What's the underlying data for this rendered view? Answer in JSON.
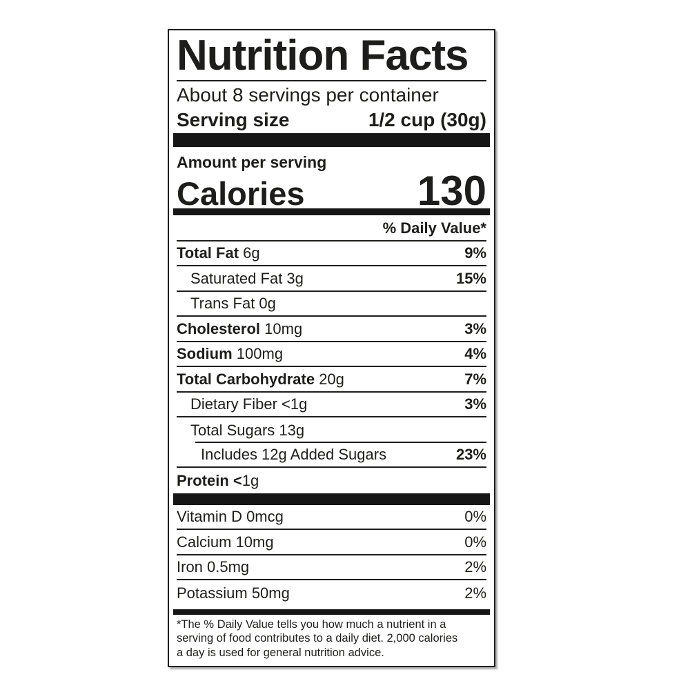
{
  "nutrition_label": {
    "title": "Nutrition Facts",
    "servings_per_container": "About 8 servings per container",
    "serving_size": {
      "label": "Serving size",
      "value": "1/2 cup (30g)"
    },
    "amount_per_serving": "Amount per serving",
    "calories": {
      "label": "Calories",
      "value": "130"
    },
    "daily_value_header": "% Daily Value*",
    "nutrients": [
      {
        "bold": "Total Fat ",
        "text": "6g",
        "dv": "9%"
      },
      {
        "bold": "",
        "text": "Saturated Fat 3g",
        "dv": "15%"
      },
      {
        "bold": "",
        "text": "Trans Fat 0g",
        "dv": ""
      },
      {
        "bold": "Cholesterol ",
        "text": "10mg",
        "dv": "3%"
      },
      {
        "bold": "Sodium ",
        "text": "100mg",
        "dv": "4%"
      },
      {
        "bold": "Total Carbohydrate ",
        "text": "20g",
        "dv": "7%"
      },
      {
        "bold": "",
        "text": "Dietary Fiber <1g",
        "dv": "3%"
      },
      {
        "bold": "",
        "text": "Total Sugars 13g",
        "dv": ""
      },
      {
        "bold": "",
        "text": "Includes 12g Added Sugars",
        "dv": "23%"
      },
      {
        "bold": "Protein <",
        "text": "1g",
        "dv": ""
      }
    ],
    "vitamins": [
      {
        "text": "Vitamin D 0mcg",
        "dv": "0%"
      },
      {
        "text": "Calcium 10mg",
        "dv": "0%"
      },
      {
        "text": "Iron 0.5mg",
        "dv": "2%"
      },
      {
        "text": "Potassium 50mg",
        "dv": "2%"
      }
    ],
    "footnote_lines": [
      "*The % Daily Value tells you how much a nutrient in a",
      "serving of food contributes to a daily diet. 2,000 calories",
      "a day is used for general nutrition advice."
    ],
    "colors": {
      "text": "#1d1d1b",
      "background": "#ffffff",
      "divider": "#161616"
    }
  }
}
